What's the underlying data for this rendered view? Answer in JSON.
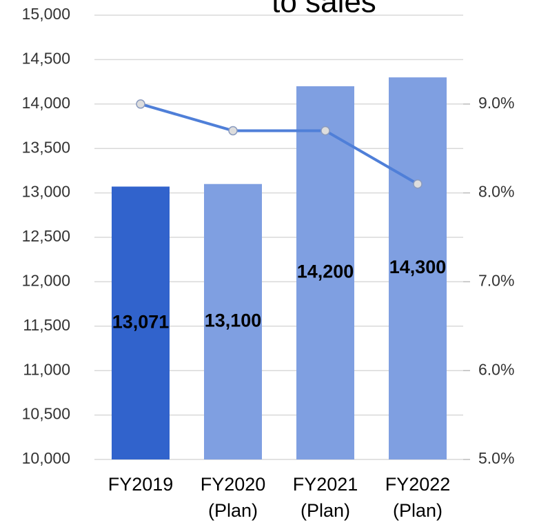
{
  "chart_data": {
    "type": "bar_line",
    "title": "to sales",
    "categories": [
      [
        "FY2019"
      ],
      [
        "FY2020",
        "(Plan)"
      ],
      [
        "FY2021",
        "(Plan)"
      ],
      [
        "FY2022",
        "(Plan)"
      ]
    ],
    "series": [
      {
        "type": "bar",
        "colors": [
          "#3163cc",
          "#7f9fe1",
          "#7f9fe1",
          "#7f9fe1"
        ],
        "values": [
          13071,
          13100,
          14200,
          14300
        ],
        "value_labels": [
          "13,071",
          "13,100",
          "14,200",
          "14,300"
        ]
      },
      {
        "type": "line",
        "axis": "y2",
        "color": "#4f7fd8",
        "values": [
          9.0,
          8.7,
          8.7,
          8.1
        ]
      }
    ],
    "ylim": [
      10000,
      15000
    ],
    "yticks": [
      {
        "value": 10000,
        "label": "10,000"
      },
      {
        "value": 10500,
        "label": "10,500"
      },
      {
        "value": 11000,
        "label": "11,000"
      },
      {
        "value": 11500,
        "label": "11,500"
      },
      {
        "value": 12000,
        "label": "12,000"
      },
      {
        "value": 12500,
        "label": "12,500"
      },
      {
        "value": 13000,
        "label": "13,000"
      },
      {
        "value": 13500,
        "label": "13,500"
      },
      {
        "value": 14000,
        "label": "14,000"
      },
      {
        "value": 14500,
        "label": "14,500"
      },
      {
        "value": 15000,
        "label": "15,000"
      }
    ],
    "y2lim": [
      5,
      10
    ],
    "y2ticks": [
      {
        "value": 5,
        "label": "5.0%"
      },
      {
        "value": 6,
        "label": "6.0%"
      },
      {
        "value": 7,
        "label": "7.0%"
      },
      {
        "value": 8,
        "label": "8.0%"
      },
      {
        "value": 9,
        "label": "9.0%"
      }
    ],
    "grid": true
  }
}
